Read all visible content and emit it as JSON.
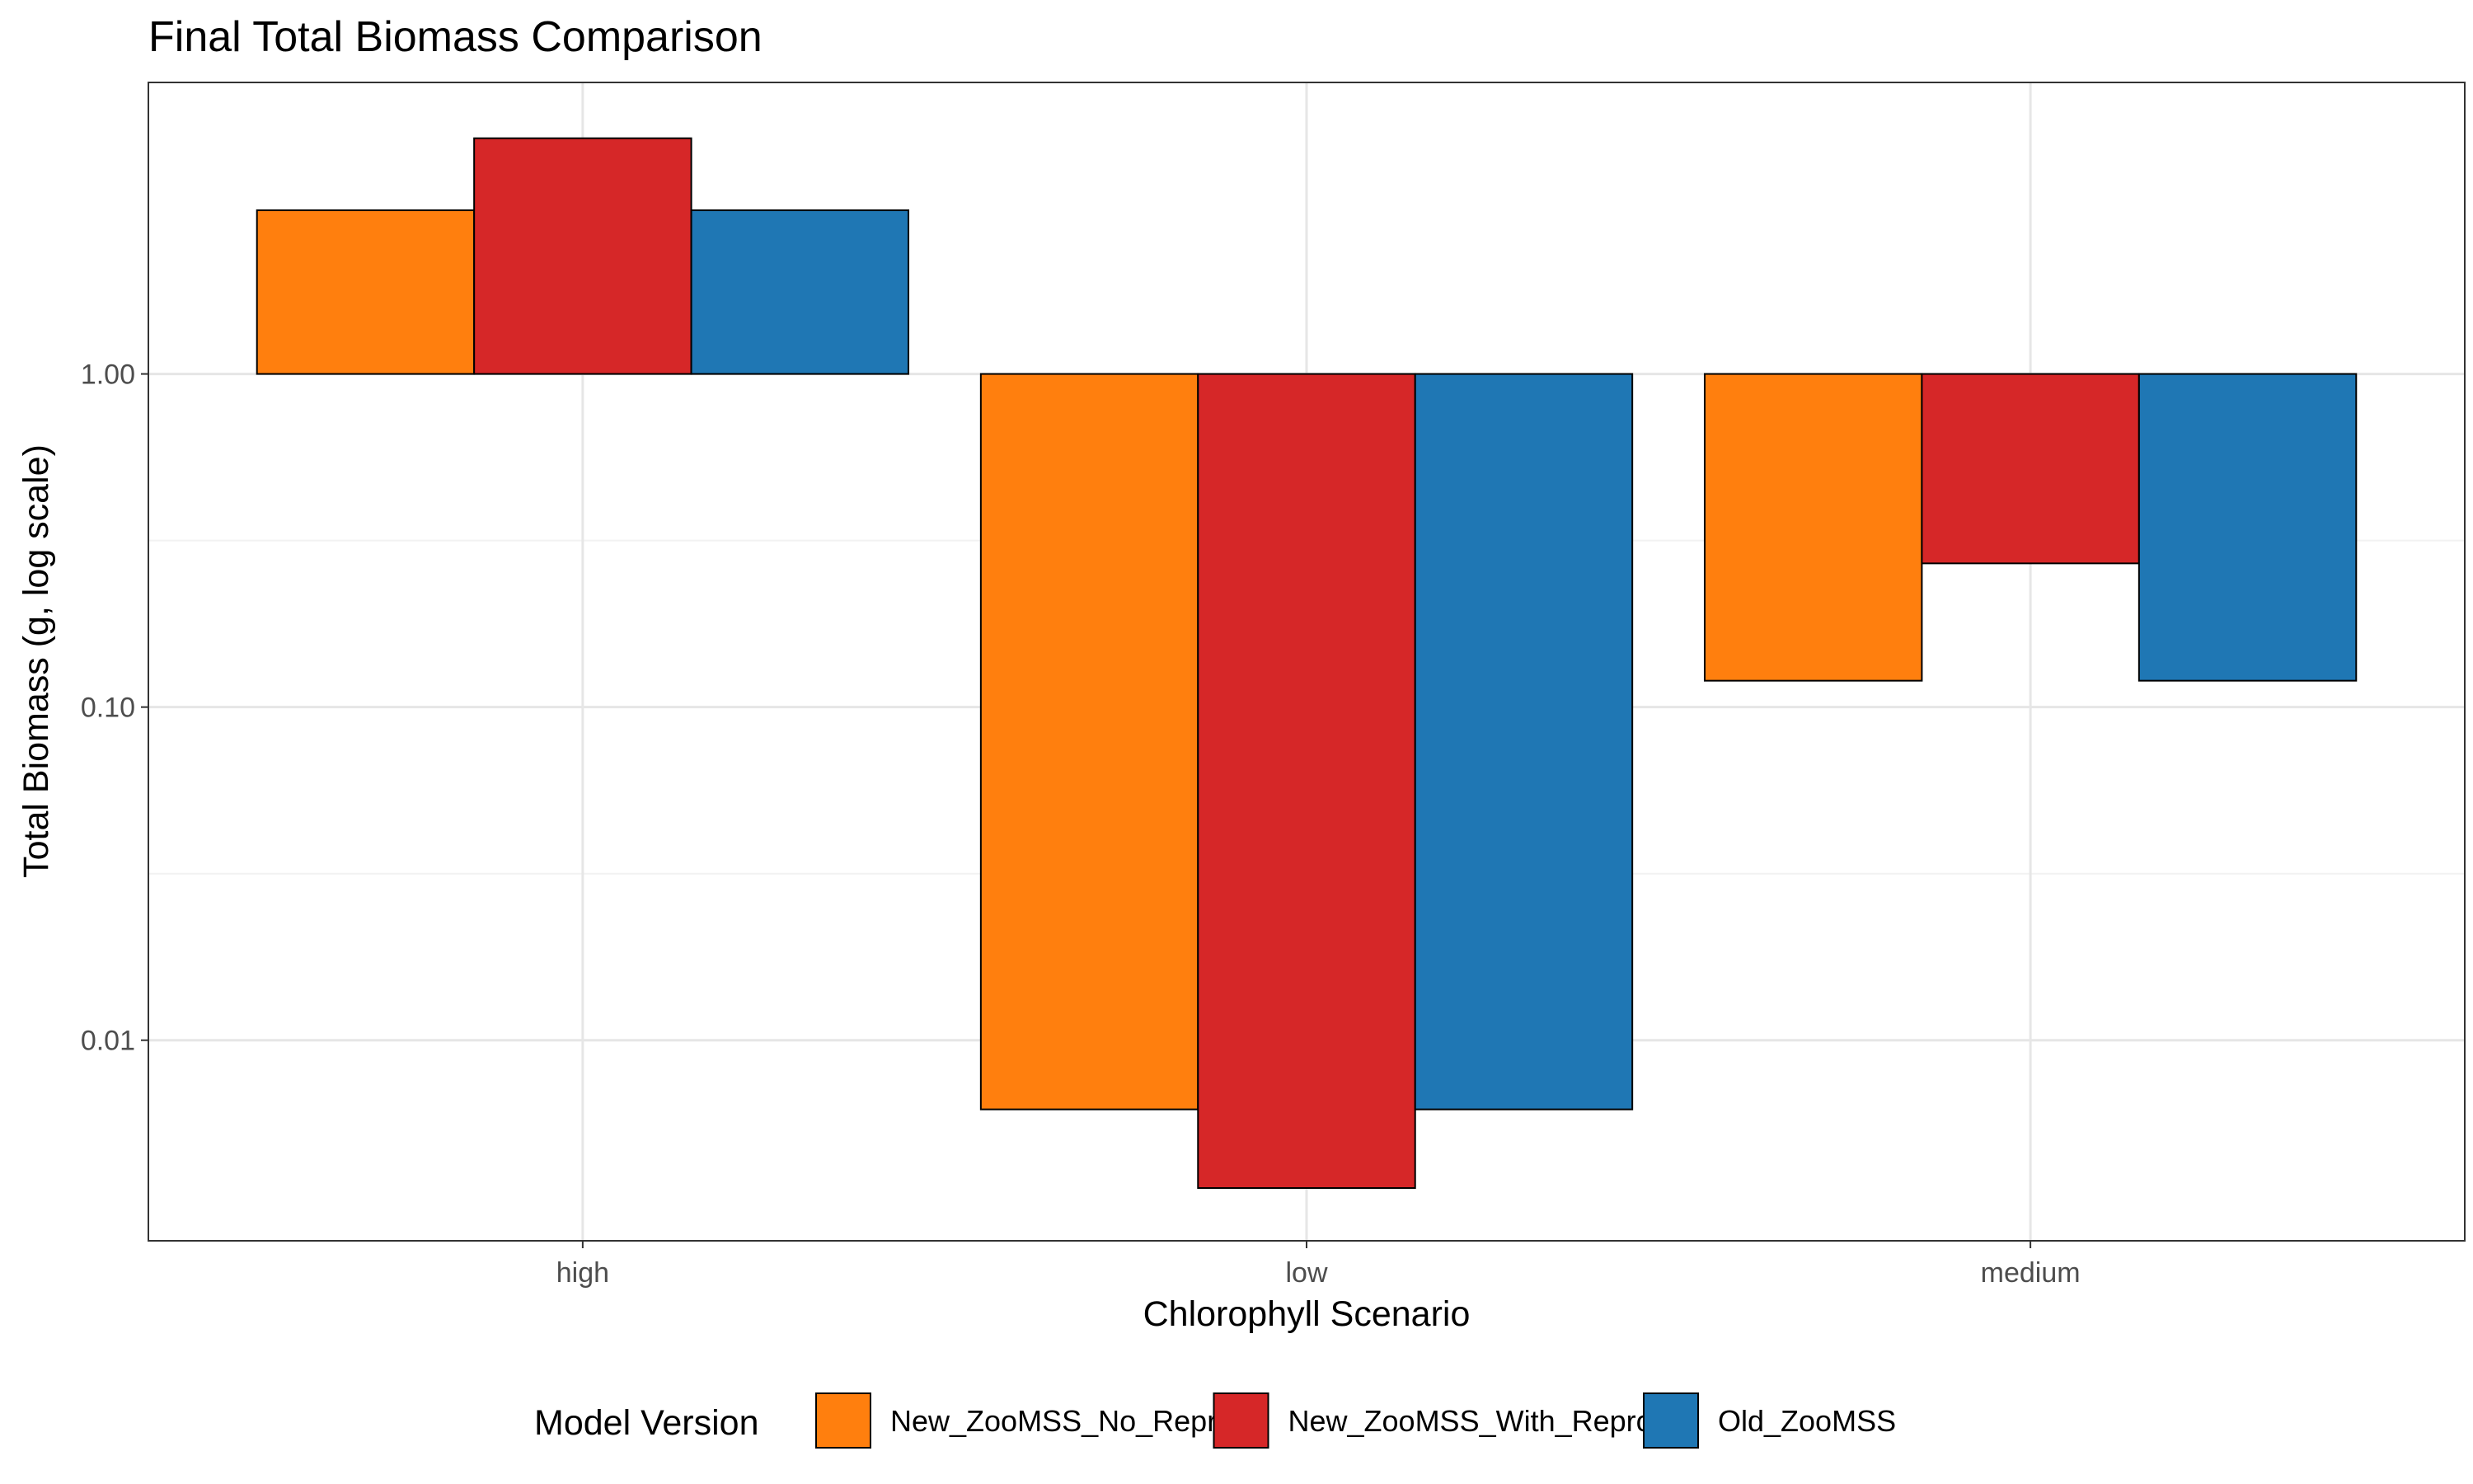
{
  "chart_data": {
    "type": "bar",
    "title": "Final Total Biomass Comparison",
    "xlabel": "Chlorophyll Scenario",
    "ylabel": "Total Biomass (g, log scale)",
    "y_scale": "log",
    "bar_baseline": 1,
    "categories": [
      "high",
      "low",
      "medium"
    ],
    "y_ticks": [
      {
        "value": 1,
        "label": "1.00"
      },
      {
        "value": 0.1,
        "label": "0.10"
      },
      {
        "value": 0.01,
        "label": "0.01"
      }
    ],
    "ylim": [
      0.0025,
      7.5
    ],
    "grid": true,
    "legend_title": "Model Version",
    "legend_position": "bottom",
    "series": [
      {
        "name": "New_ZooMSS_No_Repro",
        "color": "#FF7F0E",
        "values": [
          3.1,
          0.0062,
          0.12
        ]
      },
      {
        "name": "New_ZooMSS_With_Repro",
        "color": "#D62728",
        "values": [
          5.1,
          0.0036,
          0.27
        ]
      },
      {
        "name": "Old_ZooMSS",
        "color": "#1F77B4",
        "values": [
          3.1,
          0.0062,
          0.12
        ]
      }
    ]
  }
}
